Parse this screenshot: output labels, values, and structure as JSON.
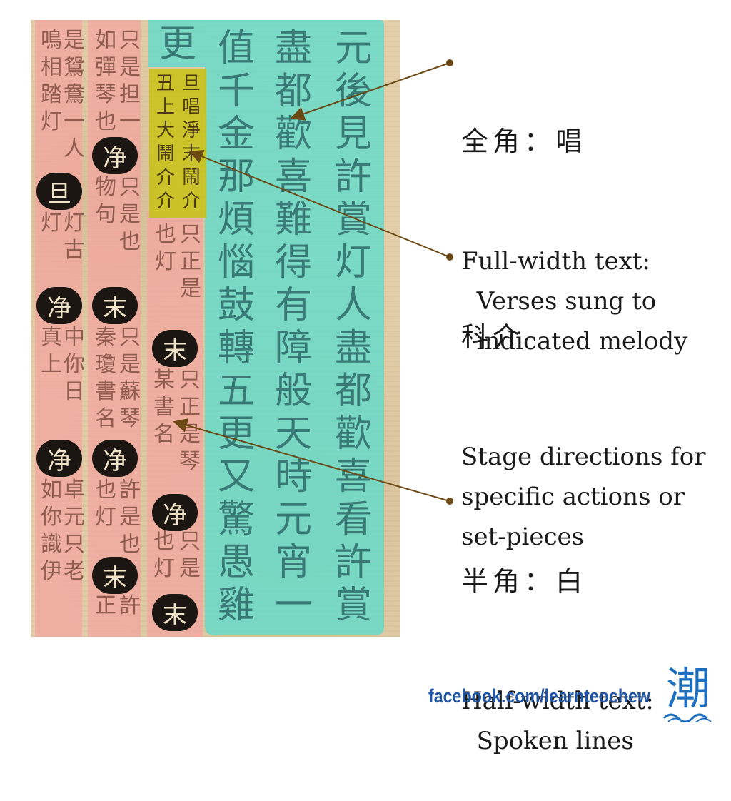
{
  "annotations": [
    {
      "heading": "全角：唱",
      "text": "Full-width text:\n  Verses sung to\n  indicated melody"
    },
    {
      "heading": "科介",
      "text": "Stage directions for\nspecific actions or\nset-pieces"
    },
    {
      "heading": "半角：白",
      "text": "Half-width text:\n  Spoken lines"
    }
  ],
  "colors": {
    "sung_highlight": "#63dcca",
    "spoken_highlight": "#f4a3a0",
    "stage_direction_highlight": "#c8c21c",
    "arrow": "#6b4a16"
  },
  "footer": {
    "link": "facebook.com/learnteochew",
    "logo_glyph": "潮"
  }
}
